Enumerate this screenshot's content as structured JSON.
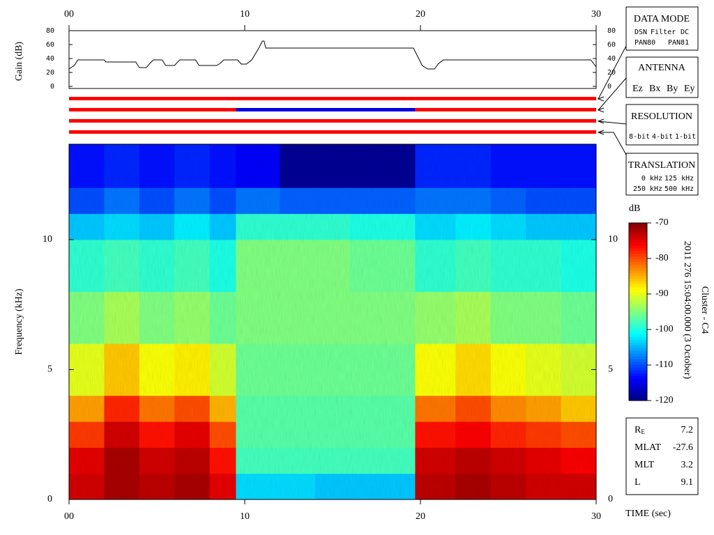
{
  "chart_data": [
    {
      "type": "line",
      "ylabel": "Gain (dB)",
      "x": [
        0,
        0.3,
        0.5,
        2,
        2.1,
        3.8,
        4,
        4.4,
        4.6,
        4.8,
        5.3,
        5.5,
        6,
        6.3,
        7.2,
        7.4,
        8.4,
        8.6,
        8.8,
        9.6,
        9.8,
        10.1,
        10.4,
        10.8,
        11,
        11.1,
        11.2,
        19.6,
        19.8,
        20.1,
        20.4,
        20.8,
        21,
        21.3,
        29.7,
        30
      ],
      "values": [
        25,
        30,
        38,
        38,
        35,
        35,
        27,
        27,
        33,
        38,
        38,
        30,
        30,
        38,
        38,
        30,
        30,
        33,
        38,
        38,
        32,
        32,
        38,
        55,
        65,
        65,
        55,
        55,
        45,
        30,
        25,
        25,
        32,
        38,
        38,
        28
      ],
      "color": "#000000",
      "xlim": [
        0,
        30
      ],
      "xticks": [
        {
          "value": 0,
          "label": "00"
        },
        10,
        20,
        30
      ],
      "ylim": [
        0,
        80
      ],
      "yticks": [
        0,
        20,
        40,
        60,
        80
      ]
    },
    {
      "type": "timeline",
      "xlim": [
        0,
        30
      ],
      "bars": [
        {
          "segments": [
            {
              "start": 0,
              "end": 30,
              "color": "#ff0000"
            }
          ]
        },
        {
          "segments": [
            {
              "start": 0,
              "end": 9.5,
              "color": "#ff0000"
            },
            {
              "start": 9.5,
              "end": 19.7,
              "color": "#0000e0"
            },
            {
              "start": 19.7,
              "end": 30,
              "color": "#ff0000"
            }
          ]
        },
        {
          "segments": [
            {
              "start": 0,
              "end": 30,
              "color": "#ff0000"
            }
          ]
        },
        {
          "segments": [
            {
              "start": 0,
              "end": 30,
              "color": "#ff0000"
            }
          ]
        }
      ]
    },
    {
      "type": "heatmap",
      "ylabel": "Frequency (kHz)",
      "xlabel": "TIME (sec)",
      "xlim": [
        0,
        30
      ],
      "xticks": [
        {
          "value": 0,
          "label": "00"
        },
        10,
        20,
        30
      ],
      "ylim": [
        0,
        13.67
      ],
      "yticks": [
        0,
        5,
        10
      ],
      "x_edges": [
        0,
        2,
        4,
        6,
        8,
        9.5,
        12,
        14,
        16,
        18,
        19.7,
        22,
        24,
        26,
        28,
        30
      ],
      "y_edges": [
        0,
        1,
        2,
        3,
        4,
        6,
        8,
        10,
        11,
        12,
        13.67
      ],
      "values": [
        [
          -74,
          -75,
          -79,
          -84,
          -90,
          -95,
          -99,
          -104,
          -110,
          -113
        ],
        [
          -72,
          -72,
          -74,
          -78,
          -86,
          -93,
          -98,
          -103,
          -108,
          -112
        ],
        [
          -73,
          -74,
          -77,
          -82,
          -89,
          -95,
          -99,
          -104,
          -110,
          -113
        ],
        [
          -72,
          -73,
          -75,
          -80,
          -88,
          -94,
          -98,
          -102,
          -108,
          -112
        ],
        [
          -75,
          -77,
          -80,
          -85,
          -91,
          -96,
          -100,
          -104,
          -110,
          -113
        ],
        [
          -103,
          -98,
          -97,
          -97,
          -96,
          -95,
          -95,
          -99,
          -108,
          -114
        ],
        [
          -103,
          -98,
          -97,
          -97,
          -96,
          -95,
          -95,
          -99,
          -109,
          -119
        ],
        [
          -104,
          -98,
          -97,
          -97,
          -96,
          -95,
          -95,
          -99,
          -109,
          -119
        ],
        [
          -104,
          -98,
          -97,
          -97,
          -96,
          -95,
          -96,
          -100,
          -109,
          -119
        ],
        [
          -104,
          -98,
          -97,
          -97,
          -96,
          -95,
          -96,
          -100,
          -109,
          -119
        ],
        [
          -73,
          -74,
          -77,
          -82,
          -89,
          -94,
          -99,
          -103,
          -108,
          -112
        ],
        [
          -72,
          -73,
          -76,
          -80,
          -87,
          -93,
          -98,
          -102,
          -108,
          -112
        ],
        [
          -73,
          -74,
          -78,
          -83,
          -89,
          -95,
          -99,
          -103,
          -109,
          -113
        ],
        [
          -74,
          -75,
          -79,
          -84,
          -90,
          -95,
          -99,
          -104,
          -110,
          -113
        ],
        [
          -74,
          -76,
          -80,
          -86,
          -91,
          -96,
          -100,
          -104,
          -110,
          -113
        ]
      ],
      "colormap": "jet",
      "zlim": [
        -120,
        -70
      ],
      "colorbar_label": "dB",
      "colorbar_ticks": [
        -70,
        -80,
        -90,
        -100,
        -110,
        -120
      ]
    }
  ],
  "panels": {
    "data_mode": {
      "title": "DATA MODE",
      "items": [
        {
          "text": "DSN",
          "color": "#e00000"
        },
        {
          "text": "Filter",
          "color": "#00c000"
        },
        {
          "text": "DC",
          "color": "#0000e0"
        },
        {
          "text": "PAN80",
          "color": "#000000"
        },
        {
          "text": "PAN81",
          "color": "#00c8c8"
        }
      ]
    },
    "antenna": {
      "title": "ANTENNA",
      "items": [
        {
          "text": "Ez",
          "color": "#e00000"
        },
        {
          "text": "Bx",
          "color": "#00c000"
        },
        {
          "text": "By",
          "color": "#0000e0"
        },
        {
          "text": "Ey",
          "color": "#000000"
        }
      ]
    },
    "resolution": {
      "title": "RESOLUTION",
      "items": [
        {
          "text": "8-bit",
          "color": "#e00000"
        },
        {
          "text": "4-bit",
          "color": "#00c000"
        },
        {
          "text": "1-bit",
          "color": "#0000e0"
        }
      ]
    },
    "translation": {
      "title": "TRANSLATION",
      "items": [
        {
          "text": "0 kHz",
          "color": "#e00000"
        },
        {
          "text": "125 kHz",
          "color": "#00c000"
        },
        {
          "text": "250 kHz",
          "color": "#0000e0"
        },
        {
          "text": "500 kHz",
          "color": "#000000"
        }
      ]
    },
    "timestamp": "2011 276 15:04:00.000 (3 October)",
    "spacecraft": "Cluster - C4",
    "orbit": [
      {
        "label": "R",
        "sub": "E",
        "value": 7.2
      },
      {
        "label": "MLAT",
        "value": -27.6
      },
      {
        "label": "MLT",
        "value": 3.2
      },
      {
        "label": "L",
        "value": 9.1
      }
    ]
  }
}
